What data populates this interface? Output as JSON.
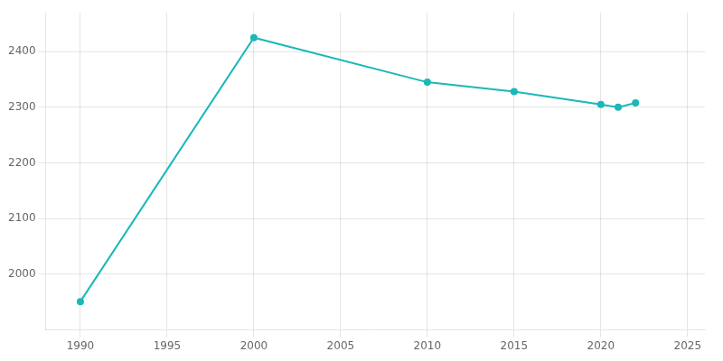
{
  "chart_data": {
    "type": "line",
    "x": [
      1990,
      2000,
      2010,
      2015,
      2020,
      2021,
      2022
    ],
    "values": [
      1951,
      2425,
      2345,
      2328,
      2305,
      2300,
      2308
    ],
    "color": "#1ab8b8",
    "marker": "circle",
    "xlim": [
      1988,
      2026
    ],
    "ylim": [
      1900,
      2470
    ],
    "xticks": [
      1990,
      1995,
      2000,
      2005,
      2010,
      2015,
      2020,
      2025
    ],
    "yticks": [
      2000,
      2100,
      2200,
      2300,
      2400
    ],
    "grid": true
  }
}
